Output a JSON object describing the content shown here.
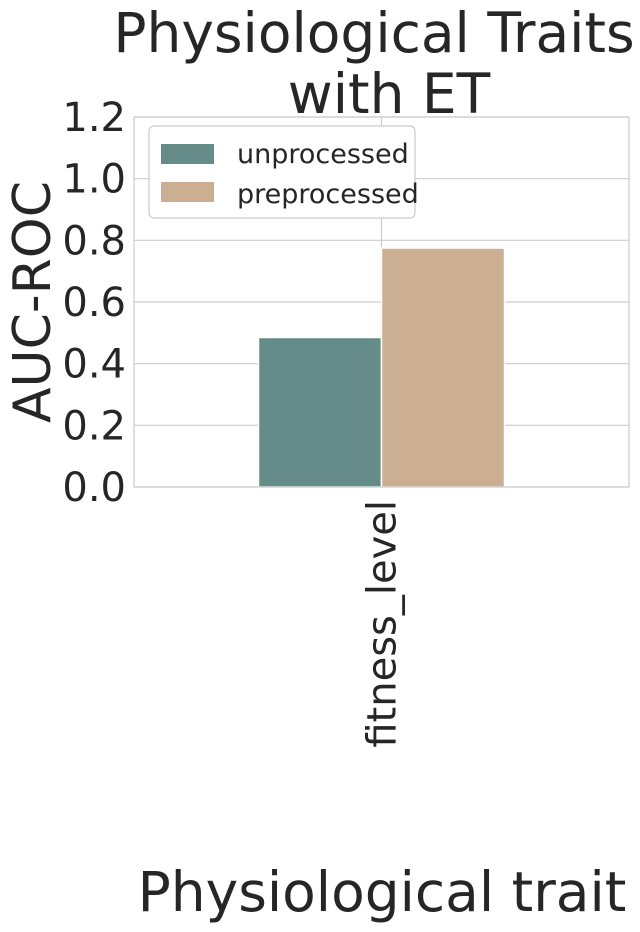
{
  "chart_data": {
    "type": "bar",
    "title_lines": [
      "Physiological Traits",
      "with ET"
    ],
    "xlabel": "Physiological trait",
    "ylabel": "AUC-ROC",
    "categories": [
      "fitness_level"
    ],
    "series": [
      {
        "name": "unprocessed",
        "values": [
          0.485
        ],
        "color": "#668c8a"
      },
      {
        "name": "preprocessed",
        "values": [
          0.775
        ],
        "color": "#ccaf92"
      }
    ],
    "ylim": [
      0,
      1.2
    ],
    "yticks": [
      "0.0",
      "0.2",
      "0.4",
      "0.6",
      "0.8",
      "1.0",
      "1.2"
    ],
    "grid": true,
    "legend_position": "top-left"
  }
}
